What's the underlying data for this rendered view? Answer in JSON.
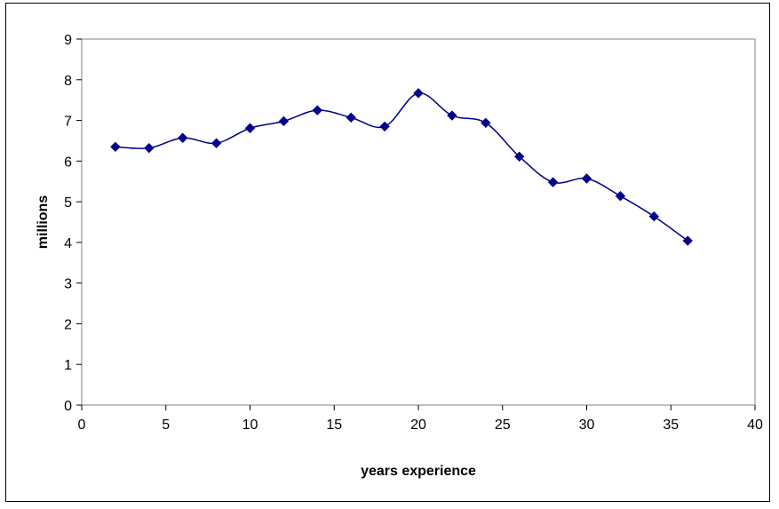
{
  "chart_data": {
    "type": "line",
    "title": "",
    "xlabel": "years experience",
    "ylabel": "millions",
    "xlim": [
      0,
      40
    ],
    "ylim": [
      0,
      9
    ],
    "x_ticks": [
      0,
      5,
      10,
      15,
      20,
      25,
      30,
      35,
      40
    ],
    "y_ticks": [
      0,
      1,
      2,
      3,
      4,
      5,
      6,
      7,
      8,
      9
    ],
    "grid": false,
    "legend": "none",
    "smooth": true,
    "marker": "diamond",
    "series": [
      {
        "color": "#00008B",
        "x": [
          2,
          4,
          6,
          8,
          10,
          12,
          14,
          16,
          18,
          20,
          22,
          24,
          26,
          28,
          30,
          32,
          34,
          36
        ],
        "y": [
          6.35,
          6.32,
          6.57,
          6.44,
          6.81,
          6.98,
          7.25,
          7.07,
          6.85,
          7.67,
          7.12,
          6.94,
          6.11,
          5.48,
          5.57,
          5.14,
          4.64,
          4.04
        ]
      }
    ]
  }
}
